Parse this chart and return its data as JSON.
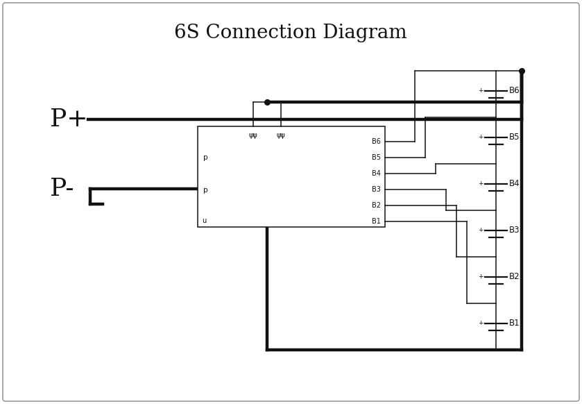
{
  "title": "6S Connection Diagram",
  "title_fontsize": 20,
  "bg_color": "#ffffff",
  "border_color": "#999999",
  "line_color": "#111111",
  "thick_lw": 3.2,
  "thin_lw": 1.1,
  "dot_r": 5.5,
  "Pplus_label": "P+",
  "Pminus_label": "P-",
  "battery_labels": [
    "B6",
    "B5",
    "B4",
    "B3",
    "B2",
    "B1"
  ],
  "bms_right_labels": [
    "B6",
    "B5",
    "B4",
    "B3",
    "B2",
    "B1"
  ],
  "bms_left_labels": [
    "p",
    "p"
  ],
  "bms_bottom_label": "u"
}
